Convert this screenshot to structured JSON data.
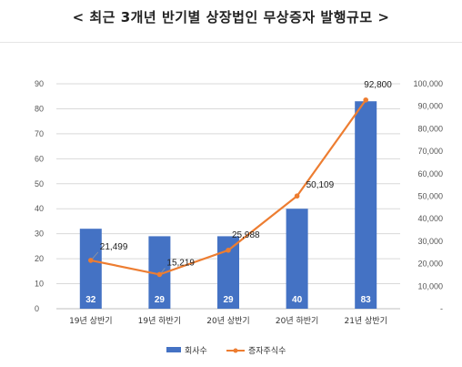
{
  "title": "< 최근 3개년 반기별 상장법인 무상증자 발행규모 >",
  "colors": {
    "bar": "#4472C4",
    "line": "#ED7D31",
    "grid": "#D9D9D9",
    "axis": "#BFBFBF"
  },
  "chart_data": {
    "type": "bar",
    "title": "< 최근 3개년 반기별 상장법인 무상증자 발행규모 >",
    "categories": [
      "19년 상반기",
      "19년 하반기",
      "20년 상반기",
      "20년 하반기",
      "21년 상반기"
    ],
    "ylim": [
      0,
      90
    ],
    "yticks": [
      "0",
      "10",
      "20",
      "30",
      "40",
      "50",
      "60",
      "70",
      "80",
      "90"
    ],
    "y2lim": [
      0,
      100000
    ],
    "y2ticks": [
      "-",
      "10,000",
      "20,000",
      "30,000",
      "40,000",
      "50,000",
      "60,000",
      "70,000",
      "80,000",
      "90,000",
      "100,000"
    ],
    "grid": true,
    "legend_position": "bottom",
    "series": [
      {
        "name": "회사수",
        "type": "bar",
        "axis": "left",
        "values": [
          32,
          29,
          29,
          40,
          83
        ],
        "labels": [
          "32",
          "29",
          "29",
          "40",
          "83"
        ]
      },
      {
        "name": "증자주식수",
        "type": "line",
        "axis": "right",
        "values": [
          21499,
          15219,
          25988,
          50109,
          92800
        ],
        "labels": [
          "21,499",
          "15,219",
          "25,988",
          "50,109",
          "92,800"
        ]
      }
    ]
  }
}
